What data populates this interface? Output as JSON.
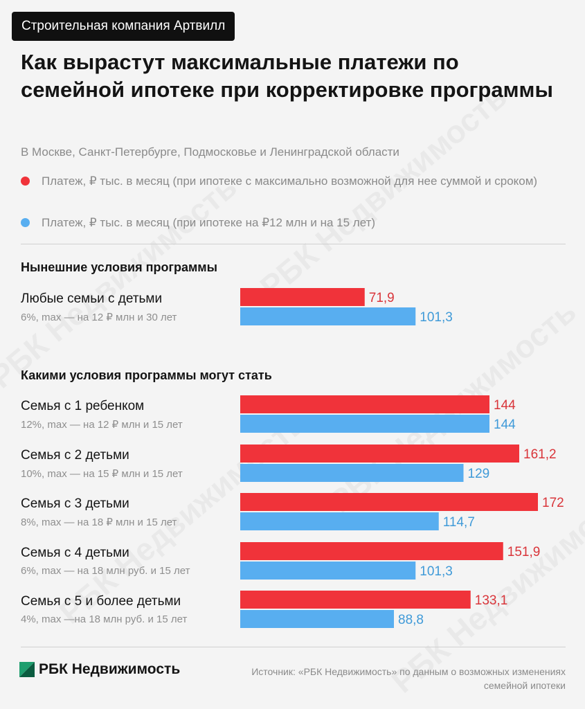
{
  "badge": "Строительная компания Артвилл",
  "title": "Как вырастут максимальные платежи по семейной ипотеке при корректировке программы",
  "subtitle": "В Москве, Санкт-Петербурге, Подмосковье и Ленинградской области",
  "legend": [
    {
      "label": "Платеж, ₽ тыс. в месяц (при ипотеке с максимально возможной для нее суммой и сроком)",
      "color": "#f0333a"
    },
    {
      "label": "Платеж, ₽ тыс. в месяц (при ипотеке на ₽12 млн и на 15 лет)",
      "color": "#58aef0"
    }
  ],
  "sections": {
    "current": "Нынешние условия программы",
    "future": "Какими условия программы могут стать"
  },
  "watermark": "РБК Недвижимость",
  "footer": {
    "logo": "РБК Недвижимость",
    "source": "Источник: «РБК Недвижимость» по данным о возможных изменениях семейной ипотеки"
  },
  "chart_data": {
    "type": "bar",
    "orientation": "horizontal",
    "categories": [
      {
        "label": "Любые семьи с детьми",
        "sub": "6%, max — на 12 ₽ млн и 30 лет"
      },
      {
        "label": "Семья с 1 ребенком",
        "sub": "12%, max — на 12 ₽ млн и 15 лет"
      },
      {
        "label": "Семья с 2 детьми",
        "sub": "10%, max — на 15 ₽ млн и 15 лет"
      },
      {
        "label": "Семья с 3 детьми",
        "sub": "8%, max — на 18 ₽ млн и 15 лет"
      },
      {
        "label": "Семья с 4 детьми",
        "sub": "6%,  max — на 18 млн руб. и 15 лет"
      },
      {
        "label": "Семья с 5 и более детьми",
        "sub": "4%,  max —на 18 млн руб. и 15 лет"
      }
    ],
    "series": [
      {
        "color": "#f0333a",
        "values": [
          71.9,
          144,
          161.2,
          172,
          151.9,
          133.1
        ],
        "labels": [
          "71,9",
          "144",
          "161,2",
          "172",
          "151,9",
          "133,1"
        ]
      },
      {
        "color": "#58aef0",
        "values": [
          101.3,
          144,
          129,
          114.7,
          101.3,
          88.8
        ],
        "labels": [
          "101,3",
          "144",
          "129",
          "114,7",
          "101,3",
          "88,8"
        ]
      }
    ],
    "value_label_colors": [
      "#d9353a",
      "#3f9ad8"
    ],
    "grid": false
  }
}
